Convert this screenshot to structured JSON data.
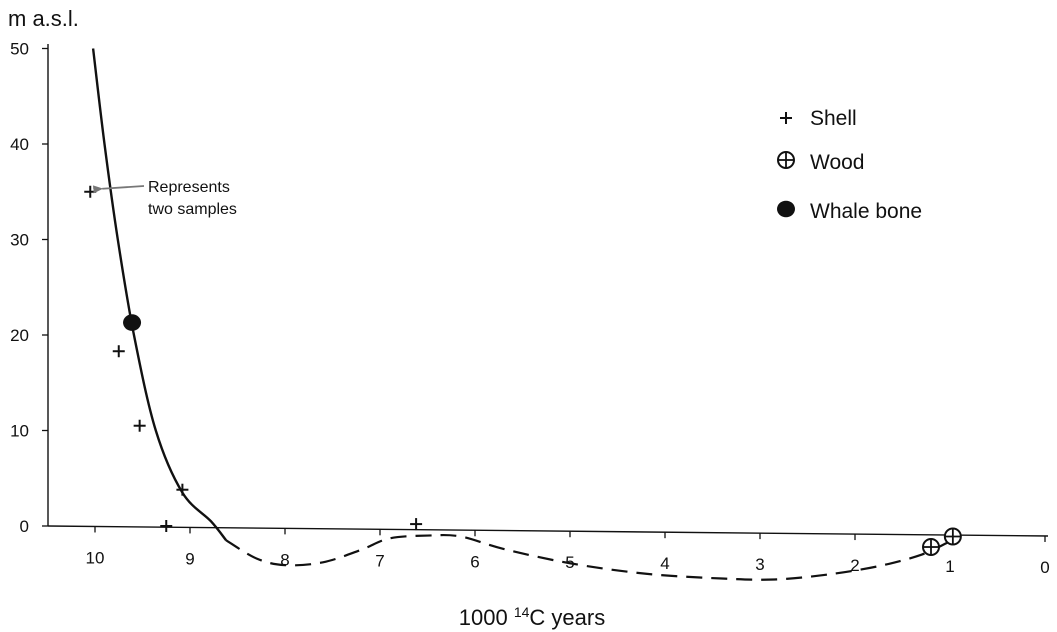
{
  "chart_data": {
    "type": "scatter",
    "ylabel": "m a.s.l.",
    "xlabel_prefix": "1000 ",
    "xlabel_sup": "14",
    "xlabel_suffix": "C years",
    "x_ticks": [
      10,
      9,
      8,
      7,
      6,
      5,
      4,
      3,
      2,
      1,
      0
    ],
    "y_ticks": [
      0,
      10,
      20,
      30,
      40,
      50
    ],
    "xlim": [
      10.5,
      0
    ],
    "ylim": [
      0,
      50
    ],
    "grid": false,
    "legend_position": "top-right",
    "legend": [
      {
        "marker": "plus",
        "label": "Shell"
      },
      {
        "marker": "circled-plus",
        "label": "Wood"
      },
      {
        "marker": "filled-circle",
        "label": "Whale bone"
      }
    ],
    "series": [
      {
        "name": "Shell",
        "marker": "plus",
        "points": [
          {
            "x": 10.05,
            "y": 35
          },
          {
            "x": 9.75,
            "y": 18.3
          },
          {
            "x": 9.53,
            "y": 10.5
          },
          {
            "x": 9.08,
            "y": 3.8
          },
          {
            "x": 9.25,
            "y": 0
          },
          {
            "x": 6.62,
            "y": 0.2
          }
        ]
      },
      {
        "name": "Wood",
        "marker": "circled-plus",
        "points": [
          {
            "x": 1.2,
            "y": -2.2
          },
          {
            "x": 0.97,
            "y": -1.1
          }
        ]
      },
      {
        "name": "Whale bone",
        "marker": "filled-circle",
        "points": [
          {
            "x": 9.61,
            "y": 21.3
          }
        ]
      }
    ],
    "curve_solid": [
      [
        10.02,
        50
      ],
      [
        9.9,
        40
      ],
      [
        9.76,
        30
      ],
      [
        9.59,
        20
      ],
      [
        9.36,
        10
      ],
      [
        9.08,
        3.5
      ],
      [
        8.78,
        0.5
      ],
      [
        8.62,
        -1.5
      ]
    ],
    "curve_dashed": [
      [
        8.62,
        -1.5
      ],
      [
        8.3,
        -3.4
      ],
      [
        8.0,
        -4.1
      ],
      [
        7.6,
        -3.8
      ],
      [
        7.2,
        -2.5
      ],
      [
        6.9,
        -1.3
      ],
      [
        6.5,
        -1.0
      ],
      [
        6.15,
        -1.1
      ],
      [
        5.7,
        -2.4
      ],
      [
        5.0,
        -3.9
      ],
      [
        4.2,
        -5.0
      ],
      [
        3.4,
        -5.5
      ],
      [
        2.85,
        -5.6
      ],
      [
        2.3,
        -5.1
      ],
      [
        1.75,
        -4.2
      ],
      [
        1.3,
        -3.0
      ],
      [
        1.0,
        -1.6
      ]
    ],
    "annotation": {
      "lines": [
        "Represents",
        "two samples"
      ],
      "target": {
        "x": 10.05,
        "y": 35
      }
    }
  }
}
